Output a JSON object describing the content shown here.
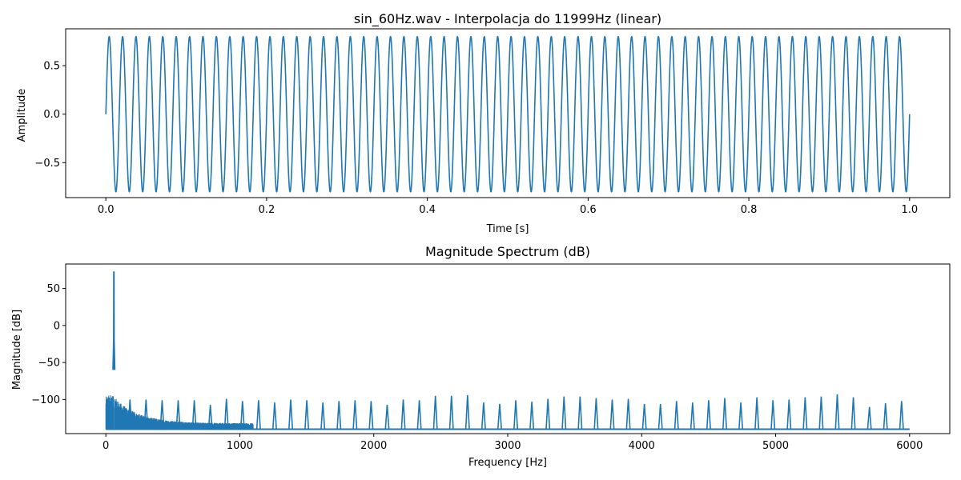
{
  "chart_data": [
    {
      "type": "line",
      "title": "sin_60Hz.wav - Interpolacja do 11999Hz (linear)",
      "xlabel": "Time [s]",
      "ylabel": "Amplitude",
      "xlim": [
        -0.05,
        1.05
      ],
      "ylim": [
        -0.86,
        0.88
      ],
      "xticks": [
        0.0,
        0.2,
        0.4,
        0.6,
        0.8,
        1.0
      ],
      "xtick_labels": [
        "0.0",
        "0.2",
        "0.4",
        "0.6",
        "0.8",
        "1.0"
      ],
      "yticks": [
        -0.5,
        0.0,
        0.5
      ],
      "ytick_labels": [
        "−0.5",
        "0.0",
        "0.5"
      ],
      "grid": false,
      "series": [
        {
          "color": "#1f77b4",
          "function": "sine",
          "frequency_hz": 60,
          "amplitude": 0.8,
          "x_range": [
            0.0,
            1.0
          ]
        }
      ]
    },
    {
      "type": "line",
      "title": "Magnitude Spectrum (dB)",
      "xlabel": "Frequency [Hz]",
      "ylabel": "Magnitude [dB]",
      "xlim": [
        -300,
        6300
      ],
      "ylim": [
        -146,
        83
      ],
      "xticks": [
        0,
        1000,
        2000,
        3000,
        4000,
        5000,
        6000
      ],
      "xtick_labels": [
        "0",
        "1000",
        "2000",
        "3000",
        "4000",
        "5000",
        "6000"
      ],
      "yticks": [
        -100,
        -50,
        0,
        50
      ],
      "ytick_labels": [
        "−100",
        "−50",
        "0",
        "50"
      ],
      "grid": false,
      "series": [
        {
          "color": "#1f77b4",
          "floor_db": -140,
          "main_peak": {
            "x": 60,
            "y": 73
          },
          "spikes": [
            {
              "x": 180,
              "y": -100
            },
            {
              "x": 300,
              "y": -100
            },
            {
              "x": 420,
              "y": -101
            },
            {
              "x": 540,
              "y": -101
            },
            {
              "x": 660,
              "y": -101
            },
            {
              "x": 780,
              "y": -107
            },
            {
              "x": 900,
              "y": -99
            },
            {
              "x": 1020,
              "y": -102
            },
            {
              "x": 1140,
              "y": -101
            },
            {
              "x": 1260,
              "y": -104
            },
            {
              "x": 1380,
              "y": -100
            },
            {
              "x": 1500,
              "y": -101
            },
            {
              "x": 1620,
              "y": -104
            },
            {
              "x": 1740,
              "y": -102
            },
            {
              "x": 1860,
              "y": -101
            },
            {
              "x": 1980,
              "y": -102
            },
            {
              "x": 2100,
              "y": -107
            },
            {
              "x": 2220,
              "y": -100
            },
            {
              "x": 2340,
              "y": -101
            },
            {
              "x": 2460,
              "y": -95
            },
            {
              "x": 2580,
              "y": -95
            },
            {
              "x": 2700,
              "y": -94
            },
            {
              "x": 2820,
              "y": -104
            },
            {
              "x": 2940,
              "y": -106
            },
            {
              "x": 3060,
              "y": -101
            },
            {
              "x": 3180,
              "y": -103
            },
            {
              "x": 3300,
              "y": -99
            },
            {
              "x": 3420,
              "y": -96
            },
            {
              "x": 3540,
              "y": -96
            },
            {
              "x": 3660,
              "y": -98
            },
            {
              "x": 3780,
              "y": -100
            },
            {
              "x": 3900,
              "y": -99
            },
            {
              "x": 4020,
              "y": -106
            },
            {
              "x": 4140,
              "y": -106
            },
            {
              "x": 4260,
              "y": -102
            },
            {
              "x": 4380,
              "y": -104
            },
            {
              "x": 4500,
              "y": -101
            },
            {
              "x": 4620,
              "y": -98
            },
            {
              "x": 4740,
              "y": -104
            },
            {
              "x": 4860,
              "y": -97
            },
            {
              "x": 4980,
              "y": -101
            },
            {
              "x": 5100,
              "y": -100
            },
            {
              "x": 5220,
              "y": -97
            },
            {
              "x": 5340,
              "y": -96
            },
            {
              "x": 5460,
              "y": -93
            },
            {
              "x": 5580,
              "y": -97
            },
            {
              "x": 5700,
              "y": -110
            },
            {
              "x": 5820,
              "y": -105
            },
            {
              "x": 5940,
              "y": -102
            }
          ]
        }
      ]
    }
  ]
}
